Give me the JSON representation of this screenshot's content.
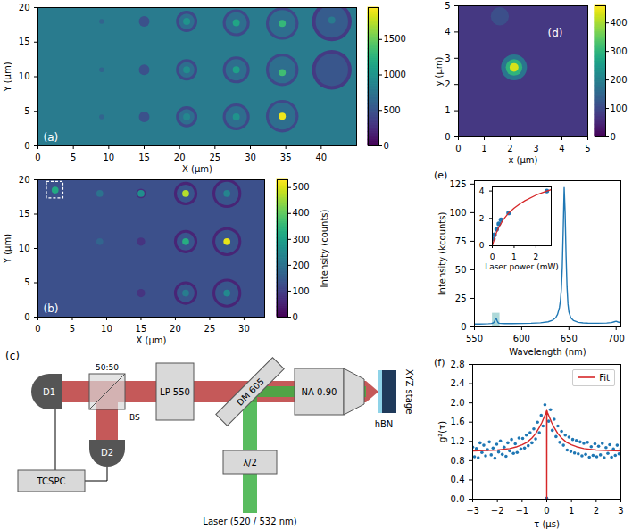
{
  "chart_data": [
    {
      "type": "heatmap",
      "panel": "(a)",
      "x_label": "X (μm)",
      "y_label": "Y (μm)",
      "xlim": [
        0,
        45
      ],
      "xticks": [
        0,
        5,
        10,
        15,
        20,
        25,
        30,
        35,
        40
      ],
      "ylim": [
        0,
        20
      ],
      "yticks": [
        0,
        5,
        10,
        15,
        20
      ],
      "background": 800,
      "spots": {
        "x": [
          9,
          9,
          9,
          15,
          15,
          15,
          21,
          21,
          21,
          28,
          28,
          28,
          34.5,
          34.5,
          34.5,
          41.5,
          41.5,
          21,
          21,
          21,
          28,
          28,
          28,
          34.5,
          34.5,
          34.5,
          41.5,
          41.5,
          21,
          21,
          21,
          28,
          28,
          28,
          34.5,
          34.5,
          34.5,
          41.5
        ],
        "y": [
          4.2,
          11,
          18,
          4.2,
          11,
          18,
          4.2,
          11,
          18,
          4.2,
          11,
          17.8,
          4.3,
          11,
          17.7,
          11,
          18,
          4.2,
          11,
          18,
          4.2,
          11,
          17.8,
          4.3,
          11,
          17.7,
          11,
          18,
          4.2,
          11,
          18,
          4.2,
          11,
          17.8,
          4.3,
          10.6,
          17.7,
          18.2
        ],
        "r": [
          0.35,
          0.35,
          0.35,
          0.75,
          0.75,
          0.75,
          1.5,
          1.5,
          1.5,
          1.9,
          1.9,
          1.9,
          2.3,
          2.3,
          2.3,
          2.8,
          2.8,
          1.1,
          1.1,
          1.1,
          1.5,
          1.5,
          1.5,
          1.9,
          1.9,
          1.9,
          2.3,
          2.3,
          0.5,
          0.5,
          0.5,
          0.5,
          0.5,
          0.5,
          0.5,
          0.5,
          0.5,
          0.5
        ],
        "values": [
          620,
          620,
          620,
          480,
          480,
          480,
          430,
          430,
          430,
          420,
          420,
          420,
          420,
          420,
          420,
          330,
          330,
          700,
          700,
          700,
          700,
          700,
          700,
          700,
          700,
          700,
          520,
          560,
          900,
          950,
          1000,
          1000,
          1100,
          1150,
          1900,
          1350,
          1300,
          800
        ]
      },
      "colorbar": {
        "range": [
          0,
          1950
        ],
        "ticks": [
          0,
          500,
          1000,
          1500
        ]
      }
    },
    {
      "type": "heatmap",
      "panel": "(b)",
      "x_label": "X (μm)",
      "y_label": "Y (μm)",
      "xlim": [
        0,
        33
      ],
      "xticks": [
        0,
        5,
        10,
        15,
        20,
        25,
        30
      ],
      "ylim": [
        0,
        20
      ],
      "yticks": [
        0,
        5,
        10,
        15,
        20
      ],
      "background": 130,
      "spots": {
        "x": [
          15,
          15,
          15,
          21.5,
          21.5,
          21.5,
          27.5,
          27.5,
          27.5,
          21.5,
          21.5,
          21.5,
          27.5,
          27.5,
          27.5,
          2.5,
          9,
          9,
          15,
          21.5,
          21.5,
          21.5,
          27.5,
          27.5,
          27.5
        ],
        "y": [
          18,
          11,
          3.5,
          18,
          11,
          3.5,
          18,
          11,
          3.5,
          18,
          11,
          3.5,
          18,
          11,
          3.5,
          18.5,
          18,
          11,
          18,
          18,
          11,
          3.5,
          18,
          11,
          3.5
        ],
        "r": [
          0.7,
          0.6,
          0.6,
          1.7,
          1.7,
          1.7,
          2.1,
          2.1,
          2.1,
          1.3,
          1.3,
          1.3,
          1.7,
          1.7,
          1.7,
          0.5,
          0.5,
          0.5,
          0.5,
          0.5,
          0.5,
          0.5,
          0.5,
          0.5,
          0.5
        ],
        "values": [
          70,
          80,
          80,
          55,
          55,
          55,
          55,
          55,
          55,
          140,
          140,
          140,
          140,
          140,
          140,
          320,
          200,
          170,
          260,
          470,
          330,
          220,
          240,
          510,
          250
        ]
      },
      "highlight": {
        "x": [
          1.3,
          3.7
        ],
        "y": [
          17.3,
          19.7
        ]
      },
      "colorbar": {
        "range": [
          0,
          530
        ],
        "ticks": [
          0,
          100,
          200,
          300,
          400,
          500
        ],
        "label": "Intensity (counts)"
      }
    },
    {
      "type": "heatmap",
      "panel": "(d)",
      "x_label": "x (μm)",
      "y_label": "y (μm)",
      "xlim": [
        0,
        5
      ],
      "xticks": [
        0,
        1,
        2,
        3,
        4,
        5
      ],
      "ylim": [
        0,
        5
      ],
      "yticks": [
        0,
        1,
        2,
        3,
        4,
        5
      ],
      "background": 75,
      "spots": {
        "x": [
          1.6,
          2.15,
          2.15,
          2.15
        ],
        "y": [
          4.6,
          2.65,
          2.65,
          2.65
        ],
        "r": [
          0.35,
          0.5,
          0.32,
          0.17
        ],
        "values": [
          110,
          180,
          300,
          430
        ]
      },
      "colorbar": {
        "range": [
          0,
          460
        ],
        "ticks": [
          0,
          100,
          200,
          300,
          400
        ]
      }
    },
    {
      "type": "line",
      "panel": "(e)",
      "x_label": "Wavelength (nm)",
      "y_label": "Intensity (kcounts)",
      "xlim": [
        550,
        705
      ],
      "xticks": [
        550,
        600,
        650,
        700
      ],
      "ylim": [
        0,
        128
      ],
      "yticks": [
        0,
        25,
        50,
        75,
        100,
        125
      ],
      "color": "#1f77b4",
      "x": [
        550,
        555,
        560,
        565,
        568,
        570,
        571,
        572,
        573,
        574,
        575,
        576,
        578,
        582,
        590,
        600,
        610,
        620,
        628,
        633,
        636,
        638,
        640,
        641,
        642,
        643,
        644,
        645,
        646,
        647,
        648,
        649,
        650,
        652,
        655,
        660,
        665,
        670,
        680,
        690,
        695,
        698,
        700,
        702,
        705
      ],
      "values": [
        2.5,
        2.5,
        2.6,
        2.8,
        3.0,
        3.5,
        4.5,
        6.5,
        7.5,
        5.5,
        3.8,
        3.2,
        3.0,
        2.9,
        2.9,
        3.0,
        3.2,
        3.6,
        4.5,
        6,
        8,
        11,
        17,
        23,
        33,
        52,
        85,
        122,
        100,
        62,
        35,
        20,
        13,
        8,
        5.5,
        4,
        3.5,
        3.3,
        3.2,
        3.4,
        3.8,
        4.5,
        5,
        4.3,
        3.6
      ],
      "highlight": {
        "x": [
          569,
          577
        ],
        "y": [
          0,
          12
        ]
      },
      "inset": {
        "type": "scatter",
        "x_label": "Laser power (mW)",
        "xlim": [
          0,
          2.7
        ],
        "xticks": [
          0,
          1,
          2
        ],
        "ylim": [
          0,
          4.3
        ],
        "yticks": [
          0,
          2,
          4
        ],
        "series": [
          {
            "type": "scatter",
            "marker": "circle",
            "color": "#1f77b4",
            "x": [
              0.05,
              0.1,
              0.2,
              0.3,
              0.4,
              0.75,
              2.5
            ],
            "values": [
              0.5,
              0.8,
              1.2,
              1.6,
              1.9,
              2.4,
              4.0
            ]
          },
          {
            "type": "line",
            "color": "#d62728",
            "x": [
              0,
              0.1,
              0.2,
              0.3,
              0.5,
              0.75,
              1,
              1.25,
              1.5,
              2,
              2.5,
              2.7
            ],
            "values": [
              0,
              0.55,
              1.0,
              1.35,
              1.9,
              2.4,
              2.75,
              3.05,
              3.3,
              3.7,
              4.0,
              4.1
            ]
          }
        ]
      }
    },
    {
      "type": "scatter",
      "panel": "(f)",
      "x_label": "τ (μs)",
      "y_label": "g²(τ)",
      "xlim": [
        -3,
        3
      ],
      "xticks": [
        -3,
        -2,
        -1,
        0,
        1,
        2,
        3
      ],
      "ylim": [
        0,
        2.8
      ],
      "yticks": [
        {
          "value": 0,
          "label": "0.0"
        },
        0.4,
        0.8,
        1.2,
        1.6,
        {
          "value": 2,
          "label": "2.0"
        },
        2.4,
        2.8
      ],
      "legend": "upper right",
      "series": [
        {
          "type": "scatter",
          "marker": "circle",
          "color": "#1f77b4",
          "x": [
            -3,
            -2.925,
            -2.85,
            -2.775,
            -2.7,
            -2.625,
            -2.55,
            -2.475,
            -2.4,
            -2.325,
            -2.25,
            -2.175,
            -2.1,
            -2.025,
            -1.95,
            -1.875,
            -1.8,
            -1.725,
            -1.65,
            -1.575,
            -1.5,
            -1.425,
            -1.35,
            -1.275,
            -1.2,
            -1.125,
            -1.05,
            -0.975,
            -0.9,
            -0.825,
            -0.75,
            -0.675,
            -0.6,
            -0.525,
            -0.45,
            -0.375,
            -0.3,
            -0.225,
            -0.15,
            -0.075,
            0,
            0.075,
            0.15,
            0.225,
            0.3,
            0.375,
            0.45,
            0.525,
            0.6,
            0.675,
            0.75,
            0.825,
            0.9,
            0.975,
            1.05,
            1.125,
            1.2,
            1.275,
            1.35,
            1.425,
            1.5,
            1.575,
            1.65,
            1.725,
            1.8,
            1.875,
            1.95,
            2.025,
            2.1,
            2.175,
            2.25,
            2.325,
            2.4,
            2.475,
            2.55,
            2.625,
            2.7,
            2.775,
            2.85,
            2.925,
            3
          ],
          "values": [
            1.08,
            0.88,
            1.05,
            0.86,
            1.17,
            0.97,
            1.12,
            0.9,
            1.03,
            1.19,
            0.92,
            1.06,
            0.85,
            1.14,
            0.98,
            1.21,
            0.93,
            1.08,
            0.89,
            1.17,
            1.0,
            1.24,
            0.95,
            1.15,
            0.97,
            1.27,
            1.04,
            1.26,
            1.06,
            1.33,
            1.11,
            1.38,
            1.17,
            1.46,
            1.25,
            1.6,
            1.38,
            1.74,
            1.52,
            1.96,
            0.02,
            1.62,
            1.86,
            1.43,
            1.66,
            1.3,
            1.52,
            1.18,
            1.41,
            1.12,
            1.33,
            1.02,
            1.29,
            0.99,
            1.24,
            0.96,
            1.22,
            0.94,
            1.19,
            0.9,
            1.16,
            0.93,
            1.18,
            0.87,
            1.09,
            0.91,
            1.15,
            0.88,
            1.1,
            0.92,
            1.16,
            0.86,
            1.07,
            0.95,
            1.13,
            0.87,
            1.04,
            0.91,
            1.12,
            0.94,
            1.05
          ]
        },
        {
          "name": "Fit",
          "type": "line",
          "color": "#d62728",
          "x": [
            -3,
            -2.5,
            -2,
            -1.5,
            -1.2,
            -1,
            -0.8,
            -0.6,
            -0.45,
            -0.3,
            -0.2,
            -0.1,
            -0.03,
            -0.005,
            0,
            0.005,
            0.03,
            0.1,
            0.2,
            0.3,
            0.45,
            0.6,
            0.8,
            1,
            1.2,
            1.5,
            2,
            2.5,
            3
          ],
          "values": [
            1.0,
            1.01,
            1.02,
            1.05,
            1.09,
            1.13,
            1.18,
            1.27,
            1.36,
            1.49,
            1.59,
            1.71,
            1.8,
            1.84,
            0,
            1.84,
            1.8,
            1.71,
            1.59,
            1.49,
            1.36,
            1.27,
            1.18,
            1.13,
            1.09,
            1.05,
            1.02,
            1.01,
            1.0
          ]
        }
      ]
    }
  ],
  "diagram": {
    "panel": "(c)",
    "detectors": [
      "D1",
      "D2"
    ],
    "counter": "TCSPC",
    "beam_splitter": [
      "50:50",
      "BS"
    ],
    "filter": "LP 550",
    "dichroic": "DM 605",
    "waveplate": "λ/2",
    "objective": "NA 0.90",
    "sample": "hBN",
    "stage": "XYZ stage",
    "laser": "Laser (520 / 532 nm)"
  }
}
